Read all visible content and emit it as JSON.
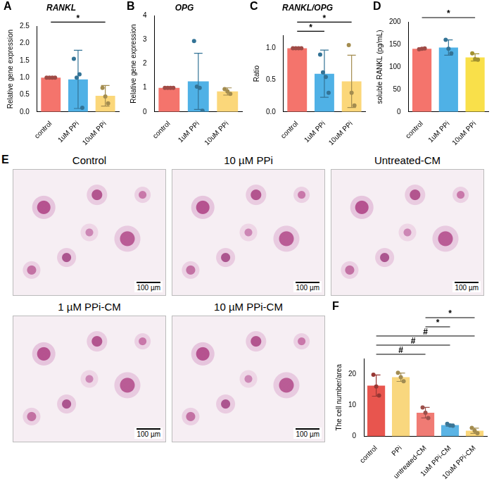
{
  "chart_data": [
    {
      "panel": "A",
      "type": "bar",
      "title": "RANKL",
      "ylabel": "Relative gene expression",
      "categories": [
        "control",
        "1uM PPi",
        "10uM PPi"
      ],
      "values": [
        1.0,
        0.95,
        0.47
      ],
      "errors": [
        0,
        0.85,
        0.3
      ],
      "points": [
        [
          1,
          1,
          1,
          1
        ],
        [
          1.55,
          1.0,
          1.1,
          0.12
        ],
        [
          0.7,
          0.45,
          0.25
        ]
      ],
      "colors": [
        "#f4746c",
        "#4fb1e6",
        "#fbd77a"
      ],
      "ylim": [
        0,
        2.5
      ],
      "yticks": [
        {
          "value": 0,
          "label": "0.0"
        },
        {
          "value": 0.5,
          "label": "0.5"
        },
        {
          "value": 1,
          "label": "1.0"
        },
        {
          "value": 1.5,
          "label": "1.5"
        },
        {
          "value": 2,
          "label": "2.0"
        },
        {
          "value": 2.5,
          "label": "2.5"
        }
      ],
      "grid": false,
      "annotations": [
        {
          "from": "control",
          "to": "10uM PPi",
          "text": "*"
        }
      ]
    },
    {
      "panel": "B",
      "type": "bar",
      "title": "OPG",
      "ylabel": "Relative gene expression",
      "categories": [
        "control",
        "1uM PPi",
        "10uM PPi"
      ],
      "values": [
        1.0,
        1.27,
        0.85
      ],
      "errors": [
        0,
        1.17,
        0.15
      ],
      "points": [
        [
          1,
          1,
          1,
          1
        ],
        [
          2.95,
          1.05,
          1.0,
          0.05
        ],
        [
          0.95,
          0.85,
          0.75
        ]
      ],
      "colors": [
        "#f4746c",
        "#4fb1e6",
        "#fbd77a"
      ],
      "ylim": [
        0,
        4
      ],
      "yticks": [
        0,
        1,
        2,
        3,
        4
      ],
      "grid": false,
      "annotations": []
    },
    {
      "panel": "C",
      "type": "bar",
      "title": "RANKL/OPG",
      "ylabel": "Ratio",
      "categories": [
        "control",
        "1uM PPi",
        "10uM PPi"
      ],
      "values": [
        1.0,
        0.6,
        0.48
      ],
      "errors": [
        0,
        0.37,
        0.41
      ],
      "points": [
        [
          1,
          1,
          1,
          1
        ],
        [
          0.9,
          0.62,
          0.55,
          0.3
        ],
        [
          1.05,
          0.3,
          0.1
        ]
      ],
      "colors": [
        "#f4746c",
        "#4fb1e6",
        "#fbd77a"
      ],
      "ylim": [
        0,
        1.2
      ],
      "yticks": [
        {
          "value": 0,
          "label": "0.0"
        },
        {
          "value": 0.5,
          "label": "0.5"
        },
        {
          "value": 1,
          "label": "1.0"
        }
      ],
      "grid": false,
      "annotations": [
        {
          "from": "control",
          "to": "1uM PPi",
          "text": "*"
        },
        {
          "from": "control",
          "to": "10uM PPi",
          "text": "*"
        }
      ]
    },
    {
      "panel": "D",
      "type": "bar",
      "ylabel": "soluble RANKL (pg/mL)",
      "categories": [
        "control",
        "1uM PPi",
        "10uM PPi"
      ],
      "values": [
        140,
        143,
        121
      ],
      "errors": [
        2,
        17,
        8
      ],
      "points": [
        [
          139,
          140,
          141
        ],
        [
          160,
          140,
          130
        ],
        [
          130,
          117,
          116
        ]
      ],
      "colors": [
        "#f4746c",
        "#4fb1e6",
        "#f9e04a"
      ],
      "ylim": [
        0,
        200
      ],
      "yticks": [
        0,
        50,
        100,
        150,
        200
      ],
      "grid": false,
      "annotations": [
        {
          "from": "control",
          "to": "10uM PPi",
          "text": "*"
        }
      ]
    },
    {
      "panel": "F",
      "type": "bar",
      "ylabel": "The cell number/area",
      "categories": [
        "control",
        "PPi",
        "untreated-CM",
        "1uM PPi-CM",
        "10uM PPi-CM"
      ],
      "values": [
        16.3,
        19.0,
        7.6,
        3.6,
        1.8
      ],
      "errors": [
        3.4,
        1.35,
        1.7,
        0.33,
        0.85
      ],
      "points": [
        [
          19.8,
          16.0,
          13.1
        ],
        [
          20.4,
          19.0,
          17.7
        ],
        [
          9.3,
          7.6,
          5.9
        ],
        [
          4.0,
          3.5,
          3.4
        ],
        [
          2.7,
          1.8,
          1.0
        ]
      ],
      "colors": [
        "#e8554e",
        "#f9d77e",
        "#f07b74",
        "#5bb4e5",
        "#fbd77a"
      ],
      "ylim": [
        0,
        25
      ],
      "yticks": [
        0,
        10,
        20
      ],
      "grid": false,
      "annotations": [
        {
          "from": "control",
          "to": "untreated-CM",
          "text": "#"
        },
        {
          "from": "control",
          "to": "1uM PPi-CM",
          "text": "#"
        },
        {
          "from": "control",
          "to": "10uM PPi-CM",
          "text": "#"
        },
        {
          "from": "untreated-CM",
          "to": "1uM PPi-CM",
          "text": "*"
        },
        {
          "from": "untreated-CM",
          "to": "10uM PPi-CM",
          "text": "*"
        }
      ]
    }
  ],
  "panel_E": {
    "panel": "E",
    "images": [
      {
        "title": "Control",
        "scale_bar": "100 µm"
      },
      {
        "title": "10 µM PPi",
        "scale_bar": "100 µm"
      },
      {
        "title": "Untreated-CM",
        "scale_bar": "100 µm"
      },
      {
        "title": "1 µM PPi-CM",
        "scale_bar": "100 µm"
      },
      {
        "title": "10 µM PPi-CM",
        "scale_bar": "100 µm"
      }
    ]
  }
}
